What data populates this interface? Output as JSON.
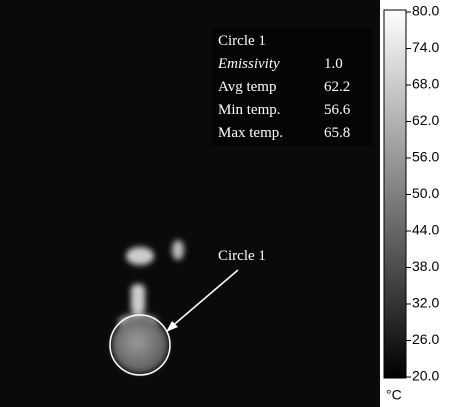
{
  "overlay": {
    "title": "Circle 1",
    "rows": [
      [
        "Emissivity",
        "1.0"
      ],
      [
        "Avg temp",
        "62.2"
      ],
      [
        "Min temp.",
        "56.6"
      ],
      [
        "Max temp.",
        "65.8"
      ]
    ]
  },
  "callout": "Circle 1",
  "colorbar": {
    "ticks": [
      "80.0",
      "74.0",
      "68.0",
      "62.0",
      "56.0",
      "50.0",
      "44.0",
      "38.0",
      "32.0",
      "26.0",
      "20.0"
    ],
    "unit": "°C"
  }
}
